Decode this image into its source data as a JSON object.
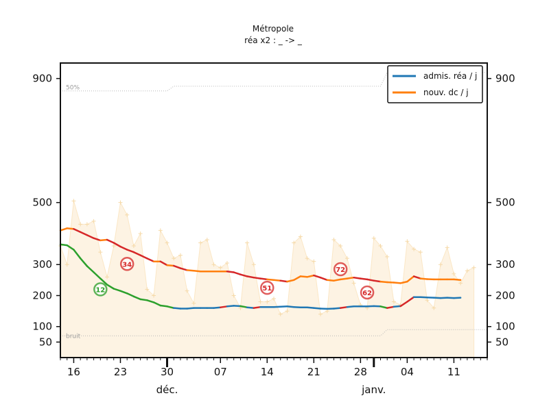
{
  "chart_data": {
    "type": "line",
    "title": "Métropole",
    "subtitle": "réa x2 : _ -> _",
    "y_ticks_left": [
      "900",
      "500",
      "300",
      "200",
      "100",
      "50"
    ],
    "y_ticks_right": [
      "900",
      "500",
      "300",
      "200",
      "100",
      "50"
    ],
    "y_tick_values": [
      900,
      500,
      300,
      200,
      100,
      50
    ],
    "x_ticks": [
      {
        "label": "16",
        "day": 16
      },
      {
        "label": "23",
        "day": 23
      },
      {
        "label": "30",
        "day": 30
      },
      {
        "label": "07",
        "day": 38
      },
      {
        "label": "14",
        "day": 45
      },
      {
        "label": "21",
        "day": 52
      },
      {
        "label": "28",
        "day": 59
      },
      {
        "label": "04",
        "day": 66
      },
      {
        "label": "11",
        "day": 73
      }
    ],
    "month_labels": [
      {
        "label": "déc.",
        "day": 30
      },
      {
        "label": "janv.",
        "day": 61
      }
    ],
    "x_range": [
      14,
      78
    ],
    "ylim": [
      0,
      950
    ],
    "ref_labels": {
      "upper": "50%",
      "lower": "bruit"
    },
    "ref_lines": {
      "upper": [
        [
          14,
          860
        ],
        [
          30,
          860
        ],
        [
          31,
          875
        ],
        [
          62,
          875
        ],
        [
          63,
          920
        ],
        [
          78,
          920
        ]
      ],
      "lower": [
        [
          14,
          70
        ],
        [
          62,
          70
        ],
        [
          63,
          90
        ],
        [
          78,
          90
        ]
      ]
    },
    "legend": [
      "admis. réa / j",
      "nouv. dc / j"
    ],
    "colors": {
      "admissions": "#1f77b4",
      "deaths": "#ff7f0e",
      "trend_down": "#2ca02c",
      "trend_up": "#d62728",
      "daily": "#fbe7c6",
      "daily_fill": "#fdf3e3",
      "badge_green": "#2ca02c",
      "badge_red": "#d62728"
    },
    "series": [
      {
        "name": "admis. réa / j",
        "x": [
          14,
          15,
          16,
          17,
          18,
          19,
          20,
          21,
          22,
          23,
          24,
          25,
          26,
          27,
          28,
          29,
          30,
          31,
          32,
          33,
          34,
          35,
          36,
          37,
          38,
          39,
          40,
          41,
          42,
          43,
          44,
          45,
          46,
          47,
          48,
          49,
          50,
          51,
          52,
          53,
          54,
          55,
          56,
          57,
          58,
          59,
          60,
          61,
          62,
          63,
          64,
          65,
          66,
          67,
          68,
          69,
          70,
          71,
          72,
          73,
          74
        ],
        "values": [
          365,
          362,
          348,
          320,
          295,
          275,
          255,
          235,
          222,
          215,
          207,
          197,
          188,
          185,
          178,
          168,
          165,
          160,
          158,
          158,
          160,
          160,
          160,
          160,
          162,
          165,
          167,
          166,
          162,
          160,
          163,
          163,
          163,
          164,
          165,
          163,
          162,
          162,
          160,
          158,
          157,
          158,
          160,
          163,
          165,
          165,
          165,
          166,
          165,
          160,
          164,
          166,
          180,
          195,
          195,
          194,
          193,
          192,
          193,
          192,
          193
        ]
      },
      {
        "name": "nouv. dc / j",
        "x": [
          14,
          15,
          16,
          17,
          18,
          19,
          20,
          21,
          22,
          23,
          24,
          25,
          26,
          27,
          28,
          29,
          30,
          31,
          32,
          33,
          34,
          35,
          36,
          37,
          38,
          39,
          40,
          41,
          42,
          43,
          44,
          45,
          46,
          47,
          48,
          49,
          50,
          51,
          52,
          53,
          54,
          55,
          56,
          57,
          58,
          59,
          60,
          61,
          62,
          63,
          64,
          65,
          66,
          67,
          68,
          69,
          70,
          71,
          72,
          73,
          74
        ],
        "values": [
          410,
          417,
          415,
          405,
          395,
          385,
          378,
          380,
          370,
          358,
          348,
          340,
          330,
          320,
          310,
          310,
          298,
          296,
          288,
          282,
          280,
          278,
          278,
          278,
          278,
          278,
          275,
          268,
          262,
          258,
          255,
          252,
          250,
          248,
          245,
          250,
          262,
          260,
          265,
          258,
          250,
          248,
          252,
          255,
          258,
          255,
          252,
          248,
          245,
          243,
          242,
          240,
          245,
          262,
          255,
          253,
          252,
          252,
          252,
          252,
          250
        ]
      },
      {
        "name": "daily admissions (raw)",
        "x": [
          14,
          15,
          16,
          17,
          18,
          19,
          20,
          21,
          22,
          23,
          24,
          25,
          26,
          27,
          28,
          29,
          30,
          31,
          32,
          33,
          34,
          35,
          36,
          37,
          38,
          39,
          40,
          41,
          42,
          43,
          44,
          45,
          46,
          47,
          48,
          49,
          50,
          51,
          52,
          53,
          54,
          55,
          56,
          57,
          58,
          59,
          60,
          61,
          62,
          63,
          64,
          65,
          66,
          67,
          68,
          69,
          70,
          71,
          72,
          73,
          74,
          75,
          76
        ],
        "values": [
          360,
          300,
          505,
          430,
          430,
          440,
          340,
          260,
          360,
          500,
          460,
          360,
          400,
          220,
          200,
          410,
          370,
          320,
          330,
          215,
          175,
          370,
          380,
          300,
          290,
          305,
          200,
          160,
          370,
          300,
          180,
          180,
          190,
          140,
          150,
          370,
          390,
          320,
          310,
          140,
          150,
          380,
          360,
          320,
          240,
          170,
          160,
          385,
          360,
          325,
          180,
          170,
          375,
          350,
          340,
          185,
          160,
          300,
          355,
          270,
          240,
          280,
          290
        ]
      }
    ],
    "badges": [
      {
        "label": "12",
        "color": "green",
        "day": 20,
        "value": 220
      },
      {
        "label": "34",
        "color": "red",
        "day": 24,
        "value": 302
      },
      {
        "label": "51",
        "color": "red",
        "day": 45,
        "value": 225
      },
      {
        "label": "72",
        "color": "red",
        "day": 56,
        "value": 285
      },
      {
        "label": "62",
        "color": "red",
        "day": 60,
        "value": 210
      }
    ]
  }
}
